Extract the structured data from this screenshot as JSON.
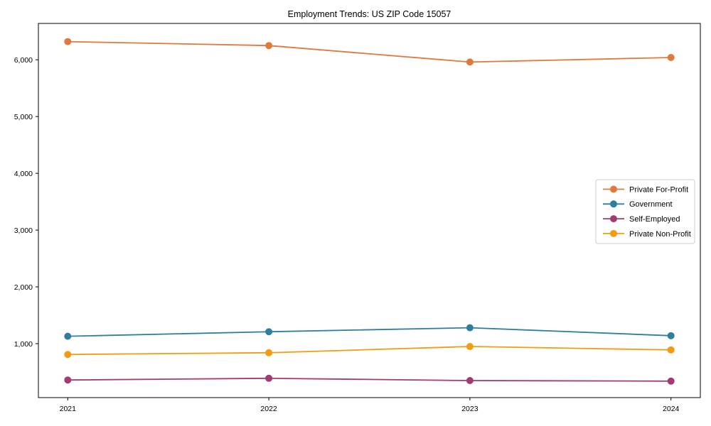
{
  "chart_data": {
    "type": "line",
    "title": "Employment Trends: US ZIP Code 15057",
    "x_labels": [
      "2021",
      "2022",
      "2023",
      "2024"
    ],
    "series": [
      {
        "name": "Private For-Profit",
        "color": "#E0793C",
        "values": [
          6320,
          6250,
          5960,
          6040
        ]
      },
      {
        "name": "Government",
        "color": "#2E7F9E",
        "values": [
          1130,
          1210,
          1280,
          1140
        ]
      },
      {
        "name": "Self-Employed",
        "color": "#A23B72",
        "values": [
          360,
          390,
          350,
          340
        ]
      },
      {
        "name": "Private Non-Profit",
        "color": "#F29C12",
        "values": [
          810,
          840,
          950,
          890
        ]
      }
    ],
    "xlabel": "",
    "ylabel": "",
    "y_ticks": [
      1000,
      2000,
      3000,
      4000,
      5000,
      6000
    ],
    "y_tick_labels": [
      "1,000",
      "2,000",
      "3,000",
      "4,000",
      "5,000",
      "6,000"
    ],
    "ylim": [
      50,
      6640
    ],
    "grid": false,
    "marker": "circle",
    "legend": {
      "position": "center right",
      "entries": [
        "Private For-Profit",
        "Government",
        "Self-Employed",
        "Private Non-Profit"
      ]
    },
    "axis_color": "#000000",
    "legend_border_color": "#cccccc",
    "background": "#ffffff"
  }
}
